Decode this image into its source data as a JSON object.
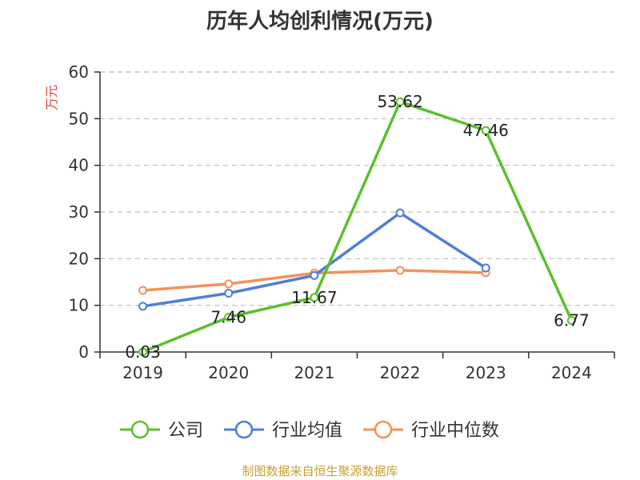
{
  "chart_data": {
    "type": "line",
    "title": "历年人均创利情况(万元)",
    "ylabel": "万元",
    "categories": [
      "2019",
      "2020",
      "2021",
      "2022",
      "2023",
      "2024"
    ],
    "ylim": [
      0,
      60
    ],
    "yticks": [
      0,
      10,
      20,
      30,
      40,
      50,
      60
    ],
    "grid": true,
    "legend_position": "bottom",
    "series": [
      {
        "name": "公司",
        "color": "#5ac02e",
        "values": [
          0.03,
          7.46,
          11.67,
          53.62,
          47.46,
          6.77
        ],
        "labels": [
          "0.03",
          "7.46",
          "11.67",
          "53.62",
          "47.46",
          "6.77"
        ]
      },
      {
        "name": "行业均值",
        "color": "#4f7fd8",
        "values": [
          9.8,
          12.6,
          16.4,
          29.8,
          18.0,
          null
        ]
      },
      {
        "name": "行业中位数",
        "color": "#f4915c",
        "values": [
          13.2,
          14.6,
          16.9,
          17.5,
          17.0,
          null
        ]
      }
    ]
  },
  "source": "制图数据来自恒生聚源数据库"
}
